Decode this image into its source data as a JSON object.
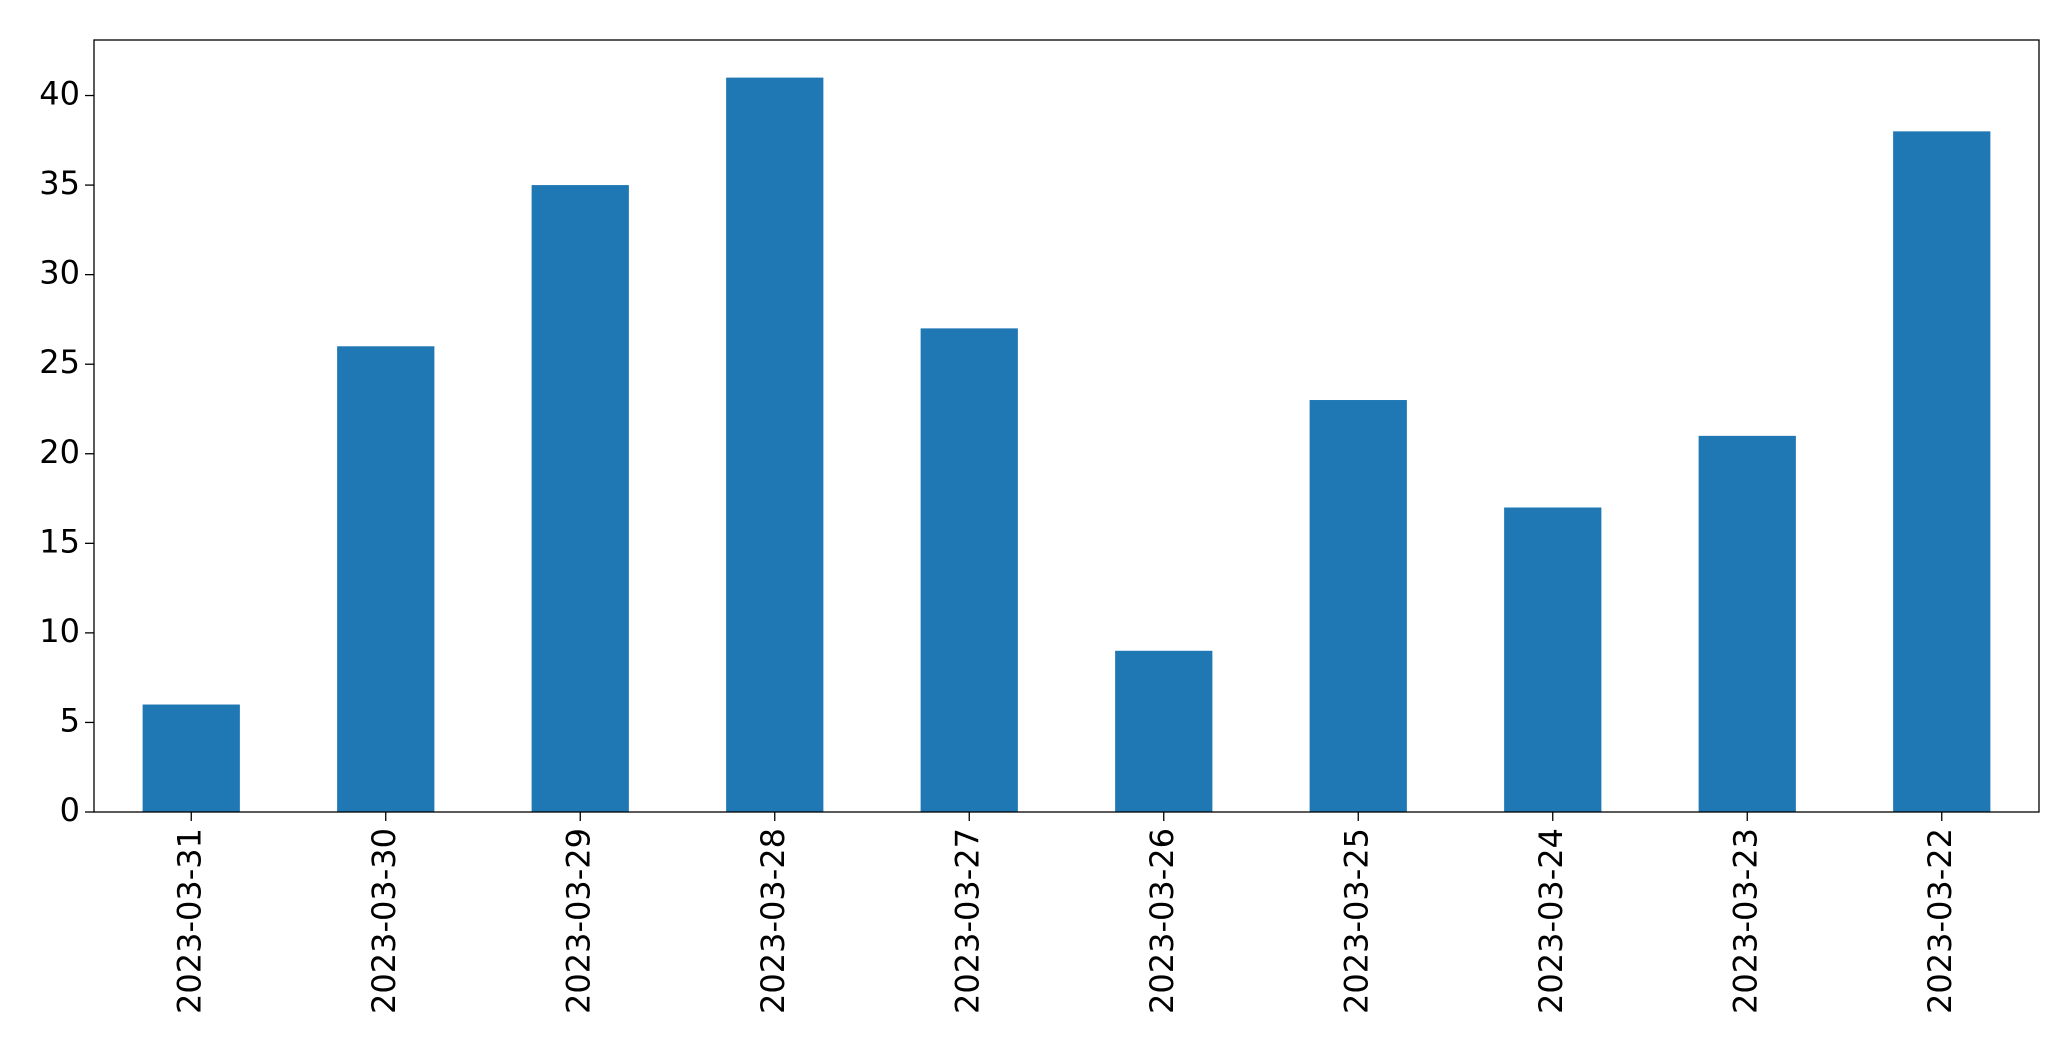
{
  "chart_data": {
    "type": "bar",
    "categories": [
      "2023-03-31",
      "2023-03-30",
      "2023-03-29",
      "2023-03-28",
      "2023-03-27",
      "2023-03-26",
      "2023-03-25",
      "2023-03-24",
      "2023-03-23",
      "2023-03-22"
    ],
    "values": [
      6,
      26,
      35,
      41,
      27,
      9,
      23,
      17,
      21,
      38
    ],
    "color": "#1f77b4",
    "ylim": [
      0,
      43.1
    ],
    "yticks": [
      0,
      5,
      10,
      15,
      20,
      25,
      30,
      35,
      40
    ],
    "grid": false
  }
}
